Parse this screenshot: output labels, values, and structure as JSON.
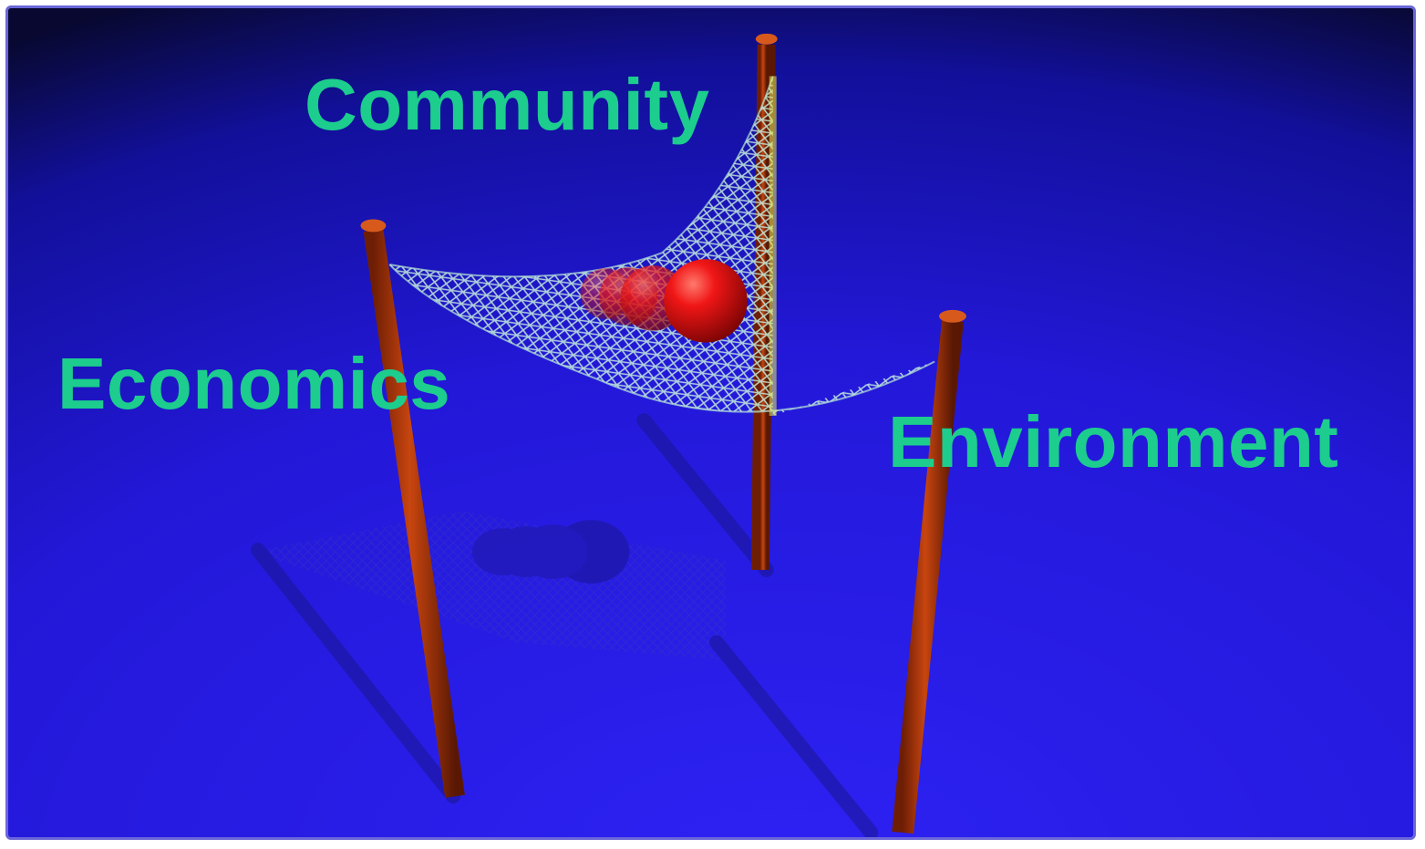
{
  "labels": {
    "community": "Community",
    "economics": "Economics",
    "environment": "Environment"
  },
  "colors": {
    "label_text": "#1ccd8e",
    "background_top": "#0b0a3c",
    "background_bottom": "#2a1ff0",
    "pole": "#b33a0c",
    "net": "#b9e8d6",
    "ball": "#e20f0f",
    "frame_border": "#6a66d8"
  },
  "icons": [
    "pole-icon",
    "net-icon",
    "ball-icon",
    "shadow-icon"
  ]
}
